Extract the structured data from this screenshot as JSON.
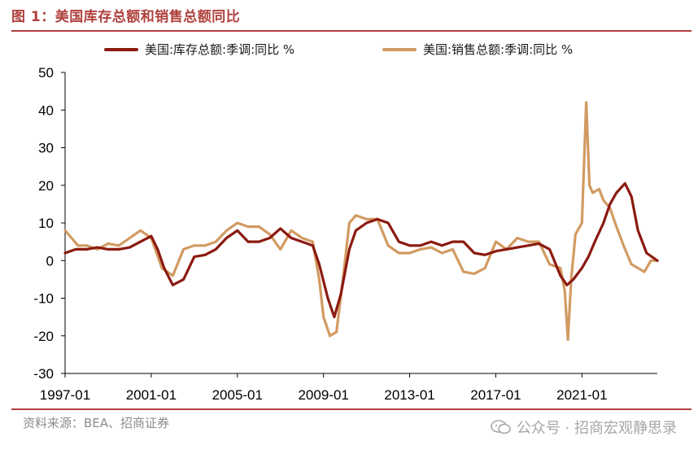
{
  "figure_title": "图 1：美国库存总额和销售总额同比",
  "source_note": "资料来源：BEA、招商证券",
  "watermark": "公众号 · 招商宏观静思录",
  "colors": {
    "accent": "#b0413e",
    "inventory": "#8b1a10",
    "sales": "#d29a62"
  },
  "chart_data": {
    "type": "line",
    "title": "",
    "xlabel": "",
    "ylabel": "",
    "ylim": [
      -30,
      50
    ],
    "yticks": [
      -30,
      -20,
      -10,
      0,
      10,
      20,
      30,
      40,
      50
    ],
    "xlim": [
      1997.0,
      2024.5
    ],
    "xtick_labels": [
      "1997-01",
      "2001-01",
      "2005-01",
      "2009-01",
      "2013-01",
      "2017-01",
      "2021-01"
    ],
    "xtick_values": [
      1997,
      2001,
      2005,
      2009,
      2013,
      2017,
      2021
    ],
    "grid": false,
    "legend_position": "top",
    "series": [
      {
        "name": "美国:库存总额:季调:同比 %",
        "color": "#8b1a10",
        "x": [
          1997.0,
          1997.5,
          1998.0,
          1998.5,
          1999.0,
          1999.5,
          2000.0,
          2000.5,
          2001.0,
          2001.3,
          2001.6,
          2002.0,
          2002.5,
          2003.0,
          2003.5,
          2004.0,
          2004.5,
          2005.0,
          2005.5,
          2006.0,
          2006.5,
          2007.0,
          2007.5,
          2008.0,
          2008.5,
          2008.8,
          2009.2,
          2009.5,
          2009.8,
          2010.2,
          2010.5,
          2011.0,
          2011.5,
          2012.0,
          2012.5,
          2013.0,
          2013.5,
          2014.0,
          2014.5,
          2015.0,
          2015.5,
          2016.0,
          2016.5,
          2017.0,
          2017.5,
          2018.0,
          2018.5,
          2019.0,
          2019.5,
          2020.0,
          2020.3,
          2020.6,
          2021.0,
          2021.3,
          2021.6,
          2022.0,
          2022.3,
          2022.6,
          2023.0,
          2023.3,
          2023.6,
          2024.0,
          2024.5
        ],
        "values": [
          2,
          3,
          3,
          3.5,
          3,
          3,
          3.5,
          5,
          6.5,
          3,
          -2,
          -6.5,
          -5,
          1,
          1.5,
          3,
          6,
          8,
          5,
          5,
          6,
          8.5,
          6,
          5,
          4,
          -1,
          -10,
          -15,
          -9,
          3,
          8,
          10,
          11,
          10,
          5,
          4,
          4,
          5,
          4,
          5,
          5,
          2,
          1.5,
          2.5,
          3,
          3.5,
          4,
          4.5,
          3,
          -4,
          -6.5,
          -5,
          -2,
          1,
          5,
          10,
          15,
          18,
          20.5,
          17,
          8,
          2,
          0
        ]
      },
      {
        "name": "美国:销售总额:季调:同比 %",
        "color": "#d29a62",
        "x": [
          1997.0,
          1997.3,
          1997.6,
          1998.0,
          1998.5,
          1999.0,
          1999.5,
          2000.0,
          2000.5,
          2001.0,
          2001.5,
          2002.0,
          2002.5,
          2003.0,
          2003.5,
          2004.0,
          2004.5,
          2005.0,
          2005.5,
          2006.0,
          2006.5,
          2007.0,
          2007.5,
          2008.0,
          2008.5,
          2008.8,
          2009.0,
          2009.3,
          2009.6,
          2009.9,
          2010.2,
          2010.5,
          2011.0,
          2011.5,
          2012.0,
          2012.5,
          2013.0,
          2013.5,
          2014.0,
          2014.5,
          2015.0,
          2015.5,
          2016.0,
          2016.5,
          2017.0,
          2017.5,
          2018.0,
          2018.5,
          2019.0,
          2019.5,
          2020.0,
          2020.2,
          2020.35,
          2020.5,
          2020.7,
          2021.0,
          2021.2,
          2021.35,
          2021.5,
          2021.8,
          2022.0,
          2022.3,
          2022.6,
          2023.0,
          2023.3,
          2023.6,
          2023.9,
          2024.2,
          2024.5
        ],
        "values": [
          8,
          6,
          4,
          4,
          3,
          4.5,
          4,
          6,
          8,
          6,
          -2,
          -4,
          3,
          4,
          4,
          5,
          8,
          10,
          9,
          9,
          7,
          3,
          8,
          6,
          5,
          -5,
          -15,
          -20,
          -19,
          -5,
          10,
          12,
          11,
          11,
          4,
          2,
          2,
          3,
          3.5,
          2,
          3,
          -3,
          -3.5,
          -2,
          5,
          3,
          6,
          5,
          5,
          -1,
          -2,
          -8,
          -21,
          -5,
          7,
          10,
          42,
          20,
          18,
          19,
          16,
          14,
          9,
          3,
          -1,
          -2,
          -3,
          0,
          0
        ]
      }
    ]
  }
}
